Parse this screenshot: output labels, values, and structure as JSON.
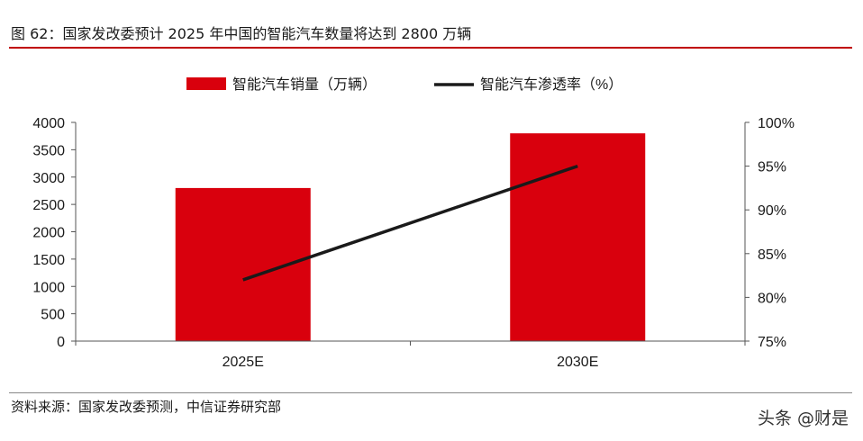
{
  "figure": {
    "title": "图 62：国家发改委预计 2025 年中国的智能汽车数量将达到 2800 万辆",
    "source": "资料来源：国家发改委预测，中信证券研究部",
    "watermark": "头条 @财是"
  },
  "colors": {
    "bar": "#d9000d",
    "line": "#1a1a1a",
    "rule": "#c00000",
    "axis": "#555555"
  },
  "chart_data": {
    "type": "bar",
    "categories": [
      "2025E",
      "2030E"
    ],
    "series": [
      {
        "name": "智能汽车销量（万辆）",
        "kind": "bar",
        "axis": "left",
        "values": [
          2800,
          3800
        ]
      },
      {
        "name": "智能汽车渗透率（%）",
        "kind": "line",
        "axis": "right",
        "values": [
          82,
          95
        ]
      }
    ],
    "y_left": {
      "min": 0,
      "max": 4000,
      "ticks": [
        0,
        500,
        1000,
        1500,
        2000,
        2500,
        3000,
        3500,
        4000
      ]
    },
    "y_right": {
      "min": 75,
      "max": 100,
      "ticks": [
        75,
        80,
        85,
        90,
        95,
        100
      ],
      "suffix": "%"
    },
    "legend_position": "top-center",
    "grid": false
  }
}
